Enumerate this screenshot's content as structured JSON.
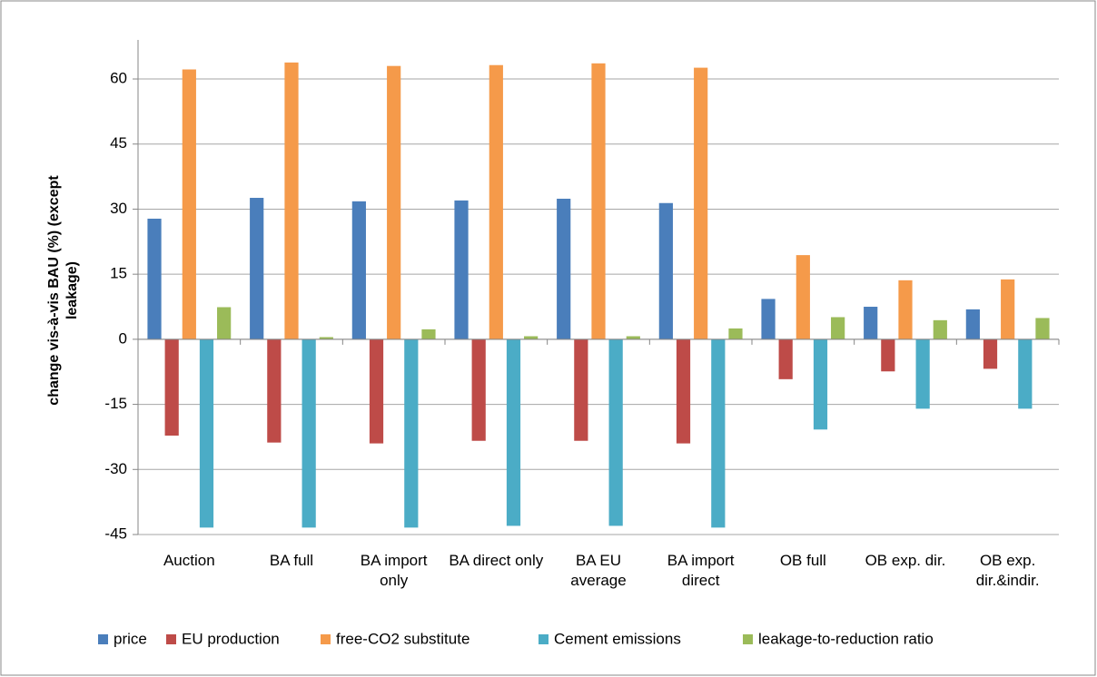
{
  "chart_data": {
    "type": "bar",
    "ylabel": "change vis-à-vis BAU  (%) (except leakage)",
    "categories": [
      "Auction",
      "BA full",
      "BA import only",
      "BA direct only",
      "BA EU average",
      "BA import direct",
      "OB full",
      "OB exp. dir.",
      "OB exp. dir.&indir."
    ],
    "series": [
      {
        "name": "price",
        "color": "#4a7ebb",
        "values": [
          27.8,
          32.6,
          31.8,
          32,
          32.4,
          31.4,
          9.3,
          7.5,
          6.9
        ]
      },
      {
        "name": "EU production",
        "color": "#be4b48",
        "values": [
          -22.2,
          -23.8,
          -24,
          -23.4,
          -23.4,
          -24,
          -9.2,
          -7.4,
          -6.8
        ]
      },
      {
        "name": "free-CO2 substitute",
        "color": "#f59a4a",
        "values": [
          62.2,
          63.8,
          63,
          63.2,
          63.6,
          62.6,
          19.4,
          13.6,
          13.8
        ]
      },
      {
        "name": "Cement emissions",
        "color": "#4bacc6",
        "values": [
          -43.4,
          -43.4,
          -43.4,
          -43,
          -43,
          -43.4,
          -20.8,
          -16,
          -16
        ]
      },
      {
        "name": "leakage-to-reduction ratio",
        "color": "#9bbb59",
        "values": [
          7.4,
          0.5,
          2.3,
          0.7,
          0.7,
          2.5,
          5.1,
          4.4,
          4.9
        ]
      }
    ],
    "ylim": [
      -45,
      69
    ],
    "yticks": [
      -45,
      -30,
      -15,
      0,
      15,
      30,
      45,
      60
    ],
    "grid": true,
    "legend": "bottom"
  }
}
